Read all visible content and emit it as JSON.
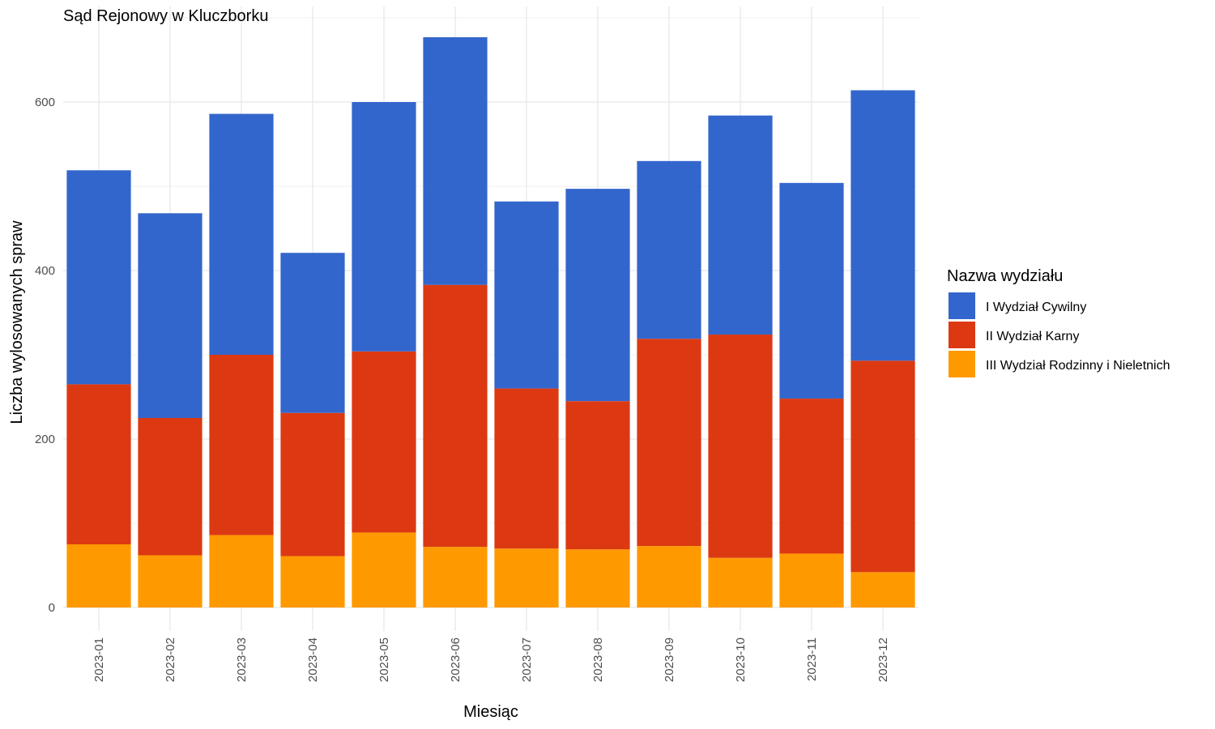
{
  "chart_data": {
    "type": "bar",
    "stacked": true,
    "title": "Sąd Rejonowy w Kluczborku",
    "xlabel": "Miesiąc",
    "ylabel": "Liczba wylosowanych spraw",
    "ylim": [
      0,
      700
    ],
    "yticks": [
      0,
      200,
      400,
      600
    ],
    "grid": true,
    "legend_title": "Nazwa wydziału",
    "legend_position": "right",
    "categories": [
      "2023-01",
      "2023-02",
      "2023-03",
      "2023-04",
      "2023-05",
      "2023-06",
      "2023-07",
      "2023-08",
      "2023-09",
      "2023-10",
      "2023-11",
      "2023-12"
    ],
    "series": [
      {
        "name": "III Wydział Rodzinny i Nieletnich",
        "color": "#FF9900",
        "values": [
          75,
          62,
          86,
          61,
          89,
          72,
          70,
          69,
          73,
          59,
          64,
          42
        ]
      },
      {
        "name": "II Wydział Karny",
        "color": "#DC3912",
        "values": [
          190,
          163,
          214,
          170,
          215,
          311,
          190,
          176,
          246,
          265,
          184,
          251
        ]
      },
      {
        "name": "I Wydział Cywilny",
        "color": "#3366CC",
        "values": [
          254,
          243,
          286,
          190,
          296,
          294,
          222,
          252,
          211,
          260,
          256,
          321
        ]
      }
    ],
    "legend_order": [
      "I Wydział Cywilny",
      "II Wydział Karny",
      "III Wydział Rodzinny i Nieletnich"
    ]
  }
}
